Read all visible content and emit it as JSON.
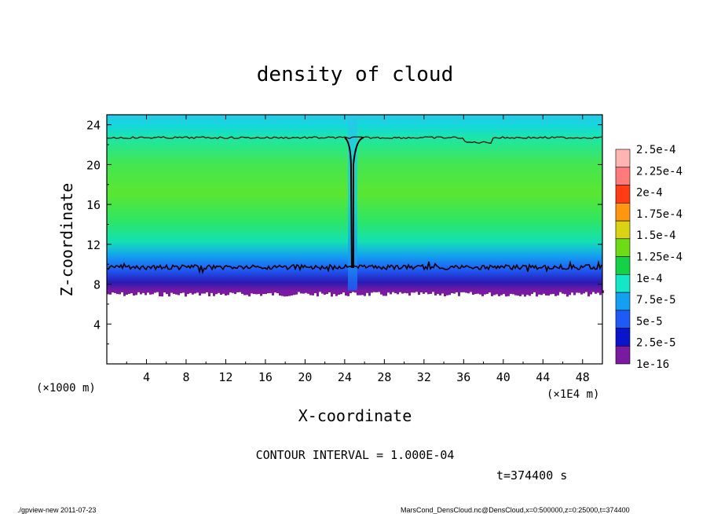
{
  "chart_data": {
    "type": "heatmap",
    "title": "density of cloud",
    "xlabel": "X-coordinate",
    "ylabel": "Z-coordinate",
    "x_unit": "(×1E4 m)",
    "y_unit": "(×1000 m)",
    "xlim": [
      0,
      50
    ],
    "ylim": [
      0,
      25
    ],
    "x_ticks": [
      4,
      8,
      12,
      16,
      20,
      24,
      28,
      32,
      36,
      40,
      44,
      48
    ],
    "y_ticks": [
      4,
      8,
      12,
      16,
      20,
      24
    ],
    "cloud_base_z": 7.3,
    "cloud_lower_contour_z": 9.7,
    "cloud_upper_contour_z": 22.7,
    "colorbar": {
      "labels": [
        "1e-16",
        "2.5e-5",
        "5e-5",
        "7.5e-5",
        "1e-4",
        "1.25e-4",
        "1.5e-4",
        "1.75e-4",
        "2e-4",
        "2.25e-4",
        "2.5e-4"
      ],
      "colors": [
        "#7a1aa0",
        "#0a14c8",
        "#1e5af5",
        "#14a0f0",
        "#14e6c8",
        "#14d246",
        "#6edc14",
        "#dcd214",
        "#ff9610",
        "#ff3c14",
        "#ff7a7a",
        "#ffb4b4"
      ]
    },
    "contour_interval": "CONTOUR INTERVAL = 1.000E-04",
    "time_label": "t=374400 s"
  },
  "footer": {
    "left": "./gpview-new  2011-07-23",
    "right": "MarsCond_DensCloud.nc@DensCloud,x=0:500000,z=0:25000,t=374400"
  }
}
